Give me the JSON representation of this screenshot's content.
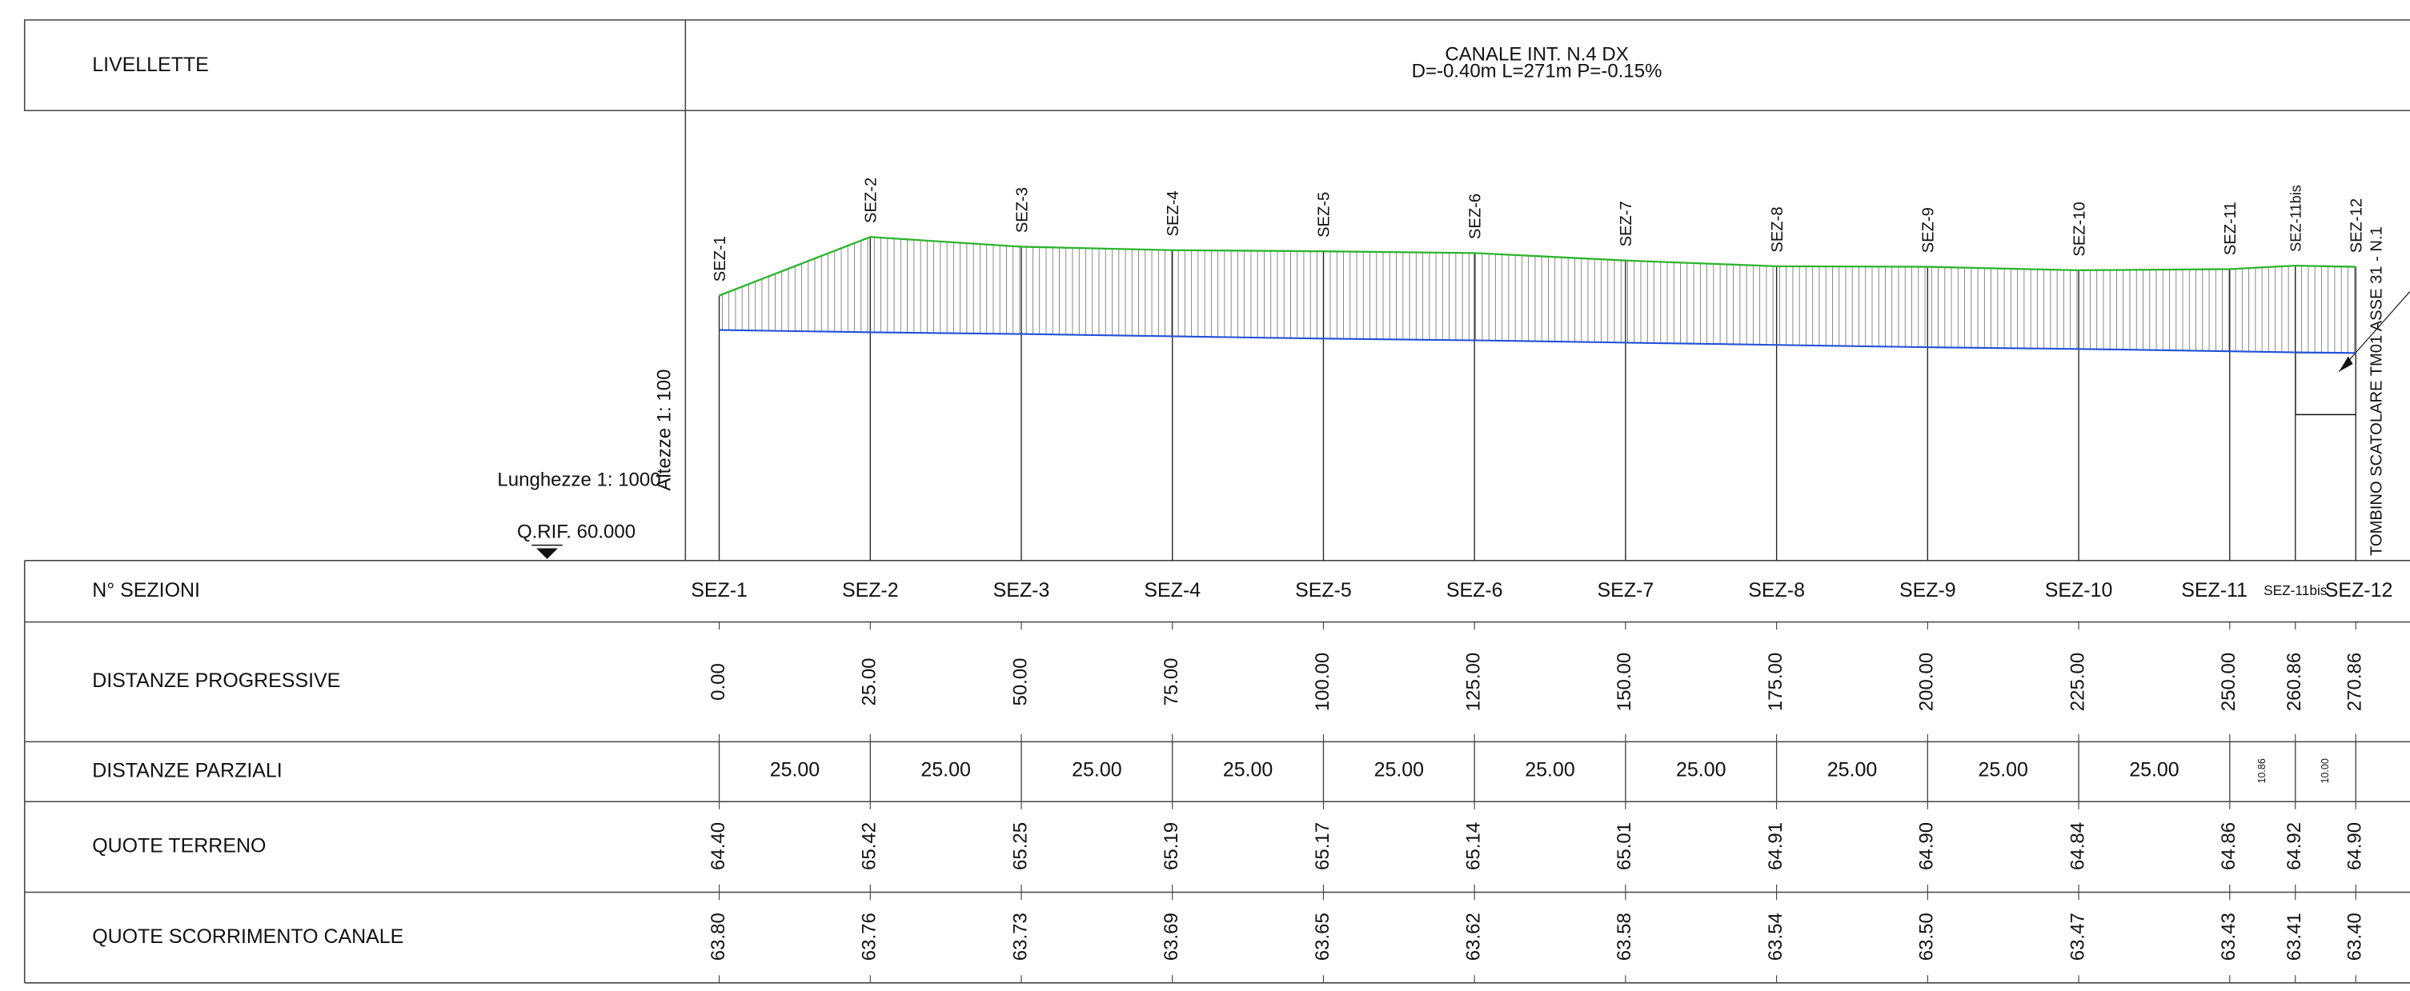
{
  "header": {
    "label": "LIVELLETTE",
    "title": "CANALE INT. N.4 DX",
    "subtitle": "D=-0.40m L=271m P=-0.15%"
  },
  "scales": {
    "heights": "Altezze 1: 100",
    "lengths": "Lunghezze 1: 1000",
    "reference": "Q.RIF. 60.000"
  },
  "annotation": "TOMBINO SCATOLARE TM01 ASSE 31 - N.1",
  "table": {
    "row_labels": [
      "N° SEZIONI",
      "DISTANZE PROGRESSIVE",
      "DISTANZE PARZIALI",
      "QUOTE TERRENO",
      "QUOTE SCORRIMENTO CANALE"
    ],
    "sections": [
      "SEZ-1",
      "SEZ-2",
      "SEZ-3",
      "SEZ-4",
      "SEZ-5",
      "SEZ-6",
      "SEZ-7",
      "SEZ-8",
      "SEZ-9",
      "SEZ-10",
      "SEZ-11",
      "SEZ-11bis",
      "SEZ-12"
    ],
    "progressive": [
      "0.00",
      "25.00",
      "50.00",
      "75.00",
      "100.00",
      "125.00",
      "150.00",
      "175.00",
      "200.00",
      "225.00",
      "250.00",
      "260.86",
      "270.86"
    ],
    "partial": [
      "25.00",
      "25.00",
      "25.00",
      "25.00",
      "25.00",
      "25.00",
      "25.00",
      "25.00",
      "25.00",
      "25.00",
      "10.86",
      "10.00"
    ],
    "terrain": [
      "64.40",
      "65.42",
      "65.25",
      "65.19",
      "65.17",
      "65.14",
      "65.01",
      "64.91",
      "64.90",
      "64.84",
      "64.86",
      "64.92",
      "64.90"
    ],
    "channel": [
      "63.80",
      "63.76",
      "63.73",
      "63.69",
      "63.65",
      "63.62",
      "63.58",
      "63.54",
      "63.50",
      "63.47",
      "63.43",
      "63.41",
      "63.40"
    ]
  }
}
